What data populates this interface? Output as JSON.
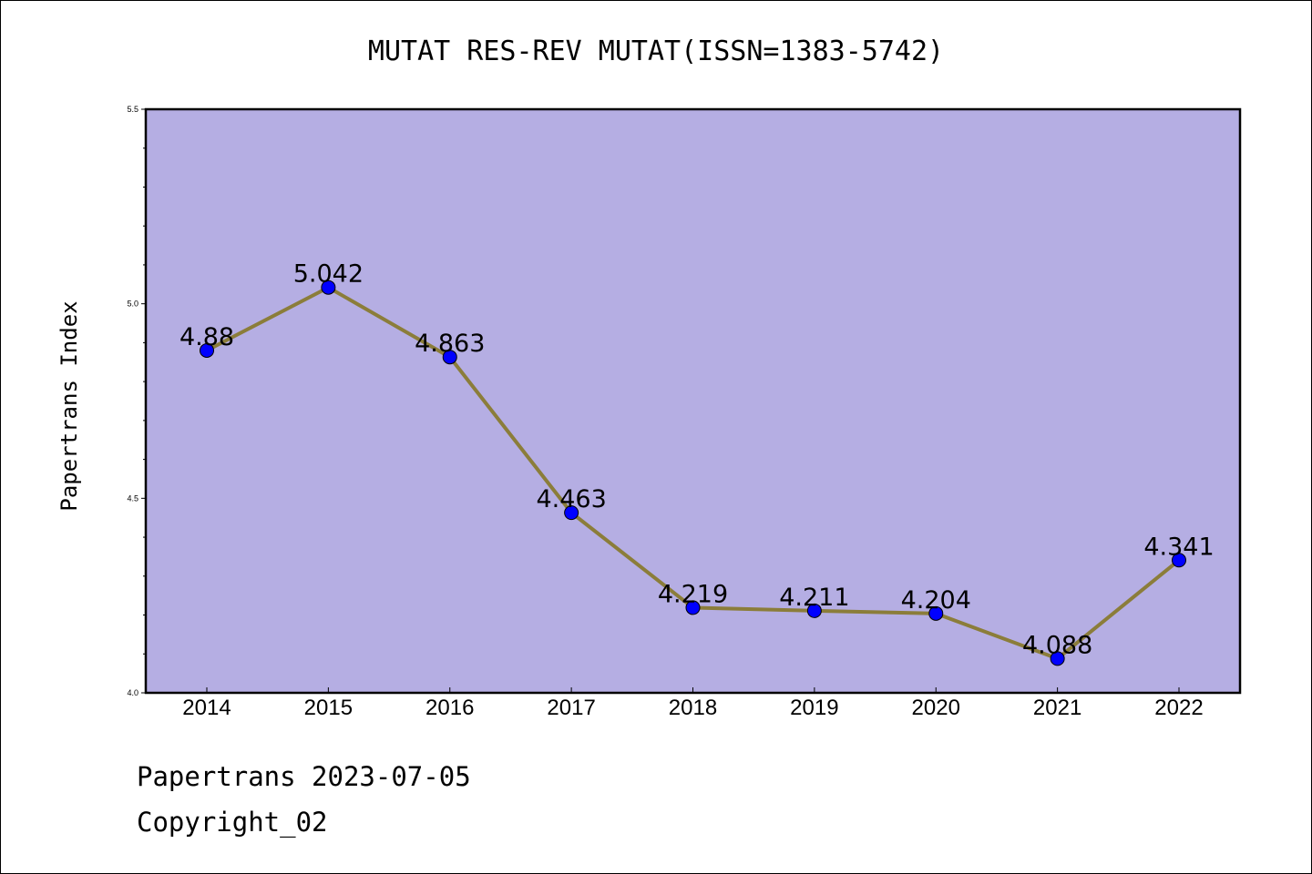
{
  "chart_data": {
    "type": "line",
    "title": "MUTAT RES-REV MUTAT(ISSN=1383-5742)",
    "xlabel": "",
    "ylabel": "Papertrans Index",
    "categories": [
      "2014",
      "2015",
      "2016",
      "2017",
      "2018",
      "2019",
      "2020",
      "2021",
      "2022"
    ],
    "series": [
      {
        "values": [
          4.88,
          5.042,
          4.863,
          4.463,
          4.219,
          4.211,
          4.204,
          4.088,
          4.341
        ],
        "labels": [
          "4.88",
          "5.042",
          "4.863",
          "4.463",
          "4.219",
          "4.211",
          "4.204",
          "4.088",
          "4.341"
        ]
      }
    ],
    "ylim": [
      4.0,
      5.5
    ],
    "yticks": [
      "4.0",
      "4.5",
      "5.0",
      "5.5"
    ],
    "grid": false,
    "colors": {
      "plot_background": "#b5aee3",
      "line": "#8b7d3a",
      "marker": "#0000ff"
    }
  },
  "footer": {
    "date_line": "Papertrans 2023-07-05",
    "copyright": "Copyright_02"
  }
}
